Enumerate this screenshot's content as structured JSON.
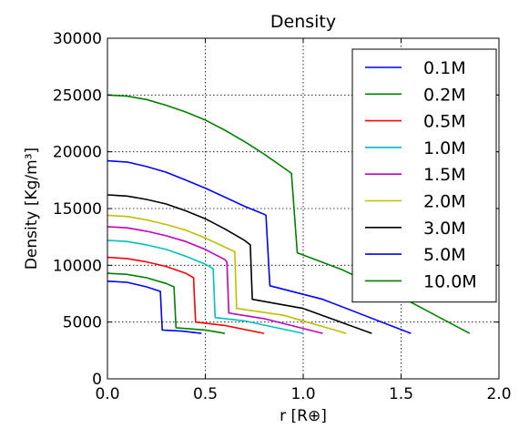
{
  "chart_data": {
    "type": "line",
    "title": "Density",
    "xlabel": "r [R⊕]",
    "ylabel": "Density [Kg/m³]",
    "xlim": [
      0.0,
      2.0
    ],
    "ylim": [
      0,
      30000
    ],
    "xticks": [
      "0.0",
      "0.5",
      "1.0",
      "1.5",
      "2.0"
    ],
    "yticks": [
      "0",
      "5000",
      "10000",
      "15000",
      "20000",
      "25000",
      "30000"
    ],
    "grid": true,
    "legend_position": "top-right",
    "series": [
      {
        "name": "0.1M",
        "color": "#0000ff",
        "x": [
          0,
          0.1,
          0.2,
          0.27,
          0.28,
          0.38,
          0.48
        ],
        "y": [
          8600,
          8500,
          8100,
          7700,
          4300,
          4200,
          4000
        ]
      },
      {
        "name": "0.2M",
        "color": "#008000",
        "x": [
          0,
          0.1,
          0.2,
          0.3,
          0.34,
          0.35,
          0.5,
          0.6
        ],
        "y": [
          9300,
          9200,
          8900,
          8400,
          8100,
          4500,
          4300,
          4000
        ]
      },
      {
        "name": "0.5M",
        "color": "#ff0000",
        "x": [
          0,
          0.1,
          0.2,
          0.3,
          0.4,
          0.44,
          0.45,
          0.6,
          0.8
        ],
        "y": [
          10700,
          10600,
          10300,
          9900,
          9300,
          8900,
          5000,
          4700,
          4000
        ]
      },
      {
        "name": "1.0M",
        "color": "#00bfbf",
        "x": [
          0,
          0.1,
          0.2,
          0.3,
          0.4,
          0.5,
          0.54,
          0.55,
          0.7,
          1.0
        ],
        "y": [
          12200,
          12100,
          11800,
          11400,
          10800,
          10100,
          9700,
          5400,
          5100,
          4000
        ]
      },
      {
        "name": "1.5M",
        "color": "#bf00bf",
        "x": [
          0,
          0.1,
          0.2,
          0.3,
          0.4,
          0.5,
          0.6,
          0.61,
          0.62,
          0.8,
          1.1
        ],
        "y": [
          13400,
          13300,
          13000,
          12600,
          12100,
          11400,
          10500,
          10300,
          5800,
          5300,
          4000
        ]
      },
      {
        "name": "2.0M",
        "color": "#bfbf00",
        "x": [
          0,
          0.1,
          0.2,
          0.3,
          0.4,
          0.5,
          0.6,
          0.65,
          0.66,
          0.9,
          1.22
        ],
        "y": [
          14400,
          14300,
          14000,
          13600,
          13100,
          12400,
          11600,
          11200,
          6200,
          5600,
          4000
        ]
      },
      {
        "name": "3.0M",
        "color": "#000000",
        "x": [
          0,
          0.1,
          0.2,
          0.3,
          0.4,
          0.5,
          0.6,
          0.7,
          0.73,
          0.74,
          1.0,
          1.35
        ],
        "y": [
          16200,
          16100,
          15800,
          15400,
          14800,
          14100,
          13200,
          12200,
          11800,
          7000,
          6200,
          4000
        ]
      },
      {
        "name": "5.0M",
        "color": "#0000ff",
        "x": [
          0,
          0.1,
          0.2,
          0.3,
          0.4,
          0.5,
          0.6,
          0.7,
          0.8,
          0.81,
          0.83,
          1.1,
          1.55
        ],
        "y": [
          19200,
          19100,
          18700,
          18200,
          17500,
          16800,
          16000,
          15200,
          14500,
          14400,
          8200,
          7000,
          4000
        ]
      },
      {
        "name": "10.0M",
        "color": "#008000",
        "x": [
          0,
          0.1,
          0.2,
          0.3,
          0.4,
          0.5,
          0.6,
          0.7,
          0.8,
          0.9,
          0.94,
          0.97,
          1.2,
          1.5,
          1.85
        ],
        "y": [
          25000,
          24900,
          24600,
          24100,
          23500,
          22800,
          21900,
          20900,
          19800,
          18600,
          18100,
          11100,
          9600,
          7200,
          4000
        ]
      }
    ]
  }
}
